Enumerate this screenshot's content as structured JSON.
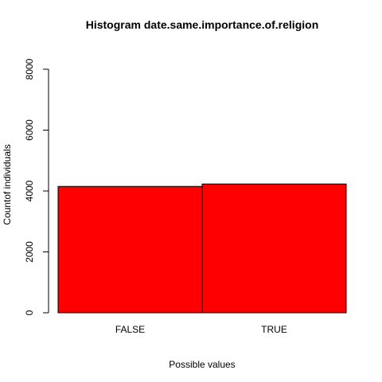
{
  "chart_data": {
    "type": "bar",
    "title": "Histogram date.same.importance.of.religion",
    "xlabel": "Possible values",
    "ylabel": "Countof individuals",
    "categories": [
      "FALSE",
      "TRUE"
    ],
    "values": [
      4150,
      4230
    ],
    "ylim": [
      0,
      8000
    ],
    "yticks": [
      0,
      2000,
      4000,
      6000,
      8000
    ],
    "bar_color": "#ff0000",
    "bar_border_color": "#000000",
    "grid": false
  }
}
